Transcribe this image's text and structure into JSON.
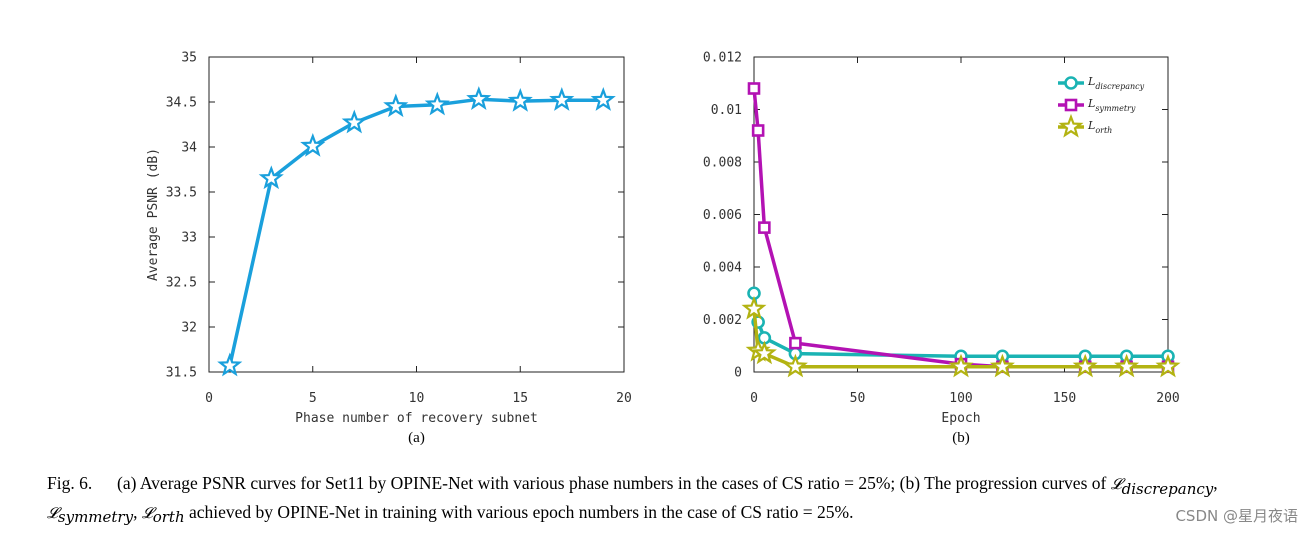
{
  "chart_data": [
    {
      "type": "line",
      "subfigure_label": "(a)",
      "title": "",
      "xlabel": "Phase number of recovery subnet",
      "ylabel": "Average PSNR (dB)",
      "xlim": [
        0,
        20
      ],
      "ylim": [
        31.5,
        35
      ],
      "xticks": [
        0,
        5,
        10,
        15,
        20
      ],
      "yticks": [
        31.5,
        32,
        32.5,
        33,
        33.5,
        34,
        34.5,
        35
      ],
      "ytick_labels": [
        "31.5",
        "32",
        "32.5",
        "33",
        "33.5",
        "34",
        "34.5",
        "35"
      ],
      "series": [
        {
          "name": "PSNR",
          "color": "#1aa0dc",
          "marker": "star",
          "x": [
            1,
            3,
            5,
            7,
            9,
            11,
            13,
            15,
            17,
            19
          ],
          "values": [
            31.57,
            33.65,
            34.01,
            34.27,
            34.45,
            34.47,
            34.53,
            34.51,
            34.52,
            34.52
          ]
        }
      ]
    },
    {
      "type": "line",
      "subfigure_label": "(b)",
      "title": "",
      "xlabel": "Epoch",
      "ylabel": "",
      "xlim": [
        0,
        200
      ],
      "ylim": [
        0,
        0.012
      ],
      "xticks": [
        0,
        50,
        100,
        150,
        200
      ],
      "yticks": [
        0,
        0.002,
        0.004,
        0.006,
        0.008,
        0.01,
        0.012
      ],
      "ytick_labels": [
        "0",
        "0.002",
        "0.004",
        "0.006",
        "0.008",
        "0.01",
        "0.012"
      ],
      "legend_position": "top-right",
      "series": [
        {
          "name": "L",
          "subscript": "discrepancy",
          "color": "#1ab3b3",
          "marker": "circle",
          "x": [
            0,
            2,
            5,
            20,
            100,
            120,
            160,
            180,
            200
          ],
          "values": [
            0.003,
            0.0019,
            0.0013,
            0.0007,
            0.0006,
            0.0006,
            0.0006,
            0.0006,
            0.0006
          ]
        },
        {
          "name": "L",
          "subscript": "symmetry",
          "color": "#b312b3",
          "marker": "square",
          "x": [
            0,
            2,
            5,
            20,
            100,
            120,
            160,
            180,
            200
          ],
          "values": [
            0.0108,
            0.0092,
            0.0055,
            0.0011,
            0.0003,
            0.0002,
            0.0002,
            0.0002,
            0.0002
          ]
        },
        {
          "name": "L",
          "subscript": "orth",
          "color": "#b3b312",
          "marker": "star",
          "x": [
            0,
            2,
            5,
            20,
            100,
            120,
            160,
            180,
            200
          ],
          "values": [
            0.0024,
            0.0008,
            0.0007,
            0.0002,
            0.0002,
            0.0002,
            0.0002,
            0.0002,
            0.0002
          ]
        }
      ]
    }
  ],
  "caption": {
    "fig_number": "Fig. 6.",
    "part_a": "(a) Average PSNR curves for Set11 by OPINE-Net with various phase numbers in the cases of CS ratio = 25%; (b) The progression curves of ",
    "loss_disc": "𝓛",
    "loss_disc_sub": "discrepancy",
    "comma1": ",",
    "loss_sym": "𝓛",
    "loss_sym_sub": "symmetry",
    "comma2": ",",
    "loss_orth": "𝓛",
    "loss_orth_sub": "orth",
    "part_b": " achieved by OPINE-Net in training with various epoch numbers in the case of CS ratio = 25%."
  },
  "watermark": "CSDN @星月夜语"
}
